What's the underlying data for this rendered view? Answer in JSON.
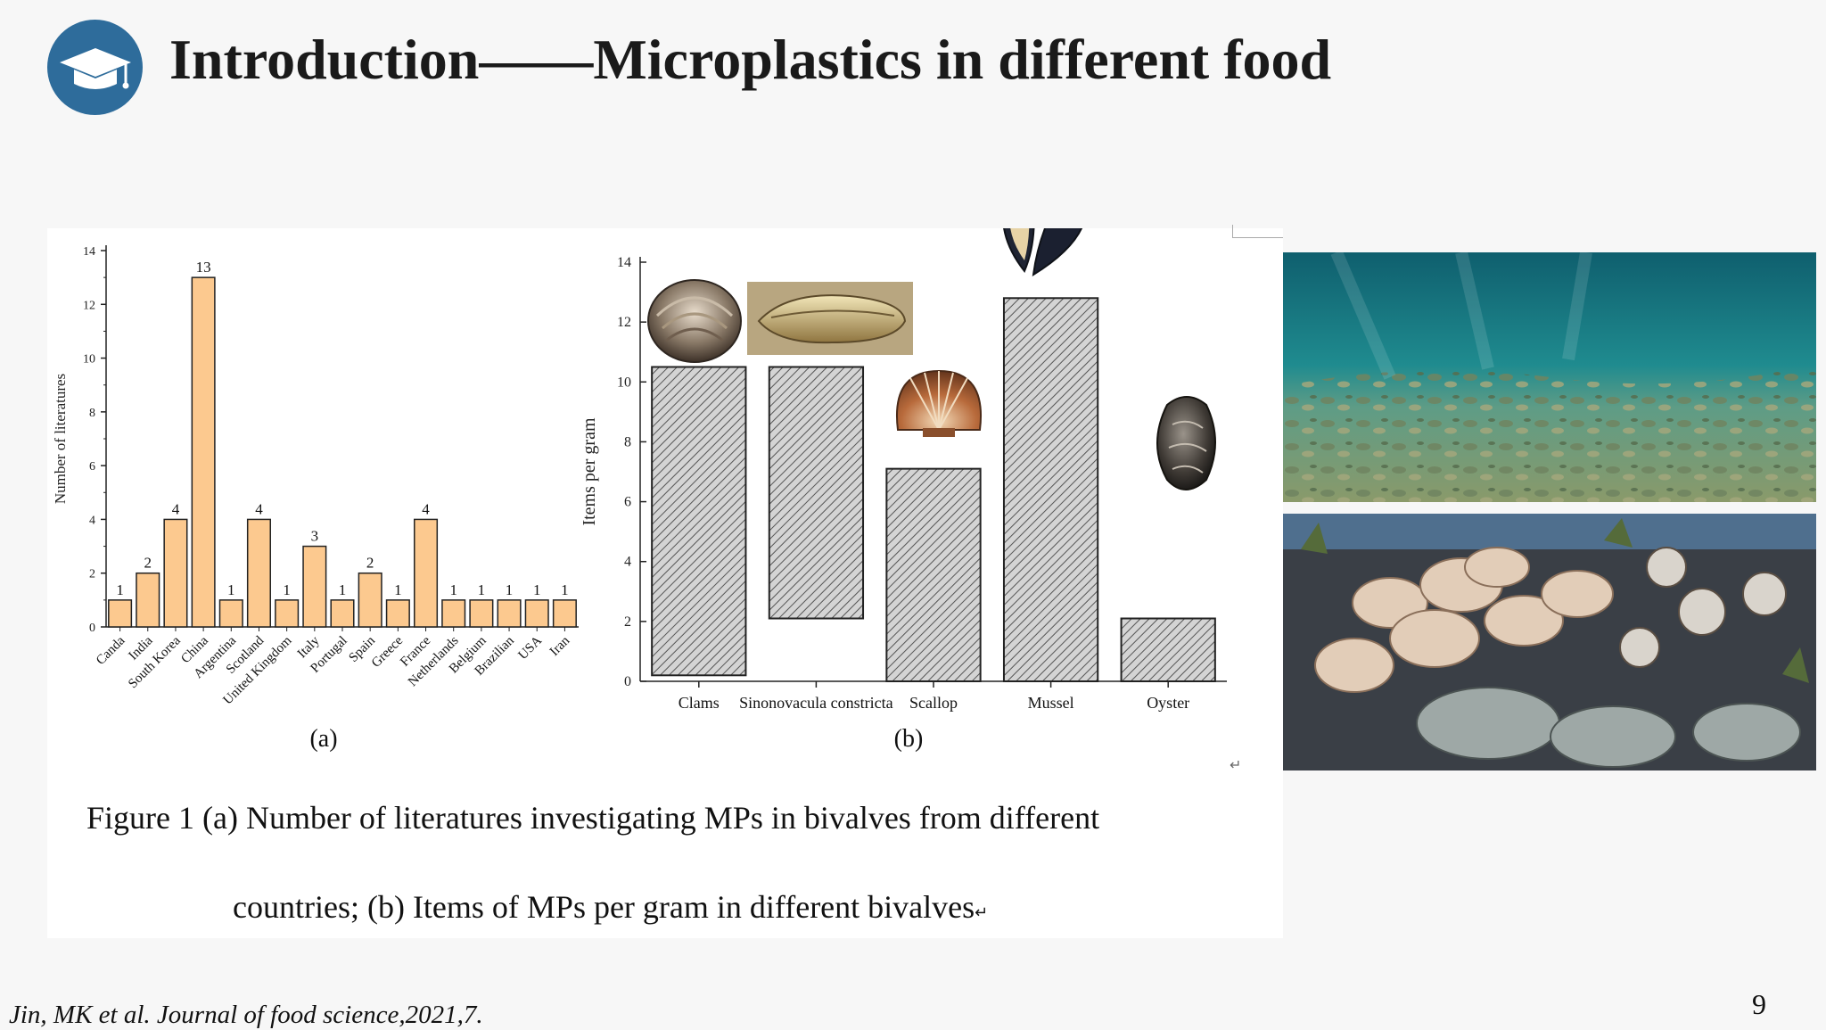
{
  "slide": {
    "title": "Introduction——Microplastics in different food",
    "page_number": "9",
    "citation": "Jin, MK et al. Journal of food science,2021,7."
  },
  "icons": {
    "logo": "graduation-cap-icon"
  },
  "colors": {
    "logo_bg": "#2e6c9b",
    "bar_a_fill": "#fcc98f",
    "bar_b_fill": "#c8c8c8",
    "bar_stroke": "#222222"
  },
  "figure": {
    "caption_line1": "Figure 1 (a) Number of literatures investigating MPs in bivalves from different",
    "caption_line2": "countries; (b) Items of MPs per gram in different bivalves",
    "return_mark": "↵"
  },
  "chart_data": [
    {
      "type": "bar",
      "panel_label": "(a)",
      "ylabel": "Number of literatures",
      "xlabel": "",
      "ylim": [
        0,
        14
      ],
      "yticks": [
        0,
        2,
        4,
        6,
        8,
        10,
        12,
        14
      ],
      "categories": [
        "Canda",
        "India",
        "South Korea",
        "China",
        "Argentina",
        "Scotland",
        "United Kingdom",
        "Italy",
        "Portugal",
        "Spain",
        "Greece",
        "France",
        "Netherlands",
        "Belgium",
        "Brazilian",
        "USA",
        "Iran"
      ],
      "values": [
        1,
        2,
        4,
        13,
        1,
        4,
        1,
        3,
        1,
        2,
        1,
        4,
        1,
        1,
        1,
        1,
        1
      ],
      "data_labels": [
        "1",
        "2",
        "4",
        "13",
        "1",
        "4",
        "1",
        "3",
        "1",
        "2",
        "1",
        "4",
        "1",
        "1",
        "1",
        "1",
        "1"
      ],
      "grid": false
    },
    {
      "type": "bar",
      "panel_label": "(b)",
      "ylabel": "Items per gram",
      "xlabel": "",
      "ylim": [
        0,
        14
      ],
      "yticks": [
        0,
        2,
        4,
        6,
        8,
        10,
        12,
        14
      ],
      "categories": [
        "Clams",
        "Sinonovacula constricta",
        "Scallop",
        "Mussel",
        "Oyster"
      ],
      "values": [
        10.5,
        10.5,
        7.1,
        12.8,
        2.1
      ],
      "bar_bottoms": [
        0.2,
        2.1,
        0,
        0,
        0
      ],
      "hatched": true,
      "grid": false
    }
  ]
}
